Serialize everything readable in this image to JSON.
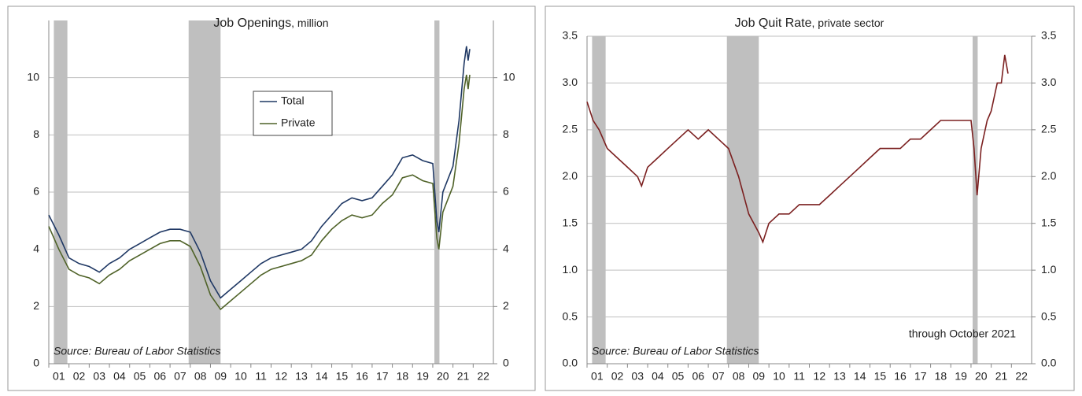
{
  "chart_data": [
    {
      "type": "line",
      "title": "Job Openings",
      "subtitle": ", million",
      "annotations": [
        "Source: Bureau of Labor Statistics"
      ],
      "legend": true,
      "recessions": [
        [
          2001.25,
          2001.92
        ],
        [
          2007.92,
          2009.5
        ],
        [
          2020.08,
          2020.33
        ]
      ],
      "xlim": [
        2001,
        2023
      ],
      "xticks": [
        {
          "value": 2001,
          "label": "01"
        },
        {
          "value": 2002,
          "label": "02"
        },
        {
          "value": 2003,
          "label": "03"
        },
        {
          "value": 2004,
          "label": "04"
        },
        {
          "value": 2005,
          "label": "05"
        },
        {
          "value": 2006,
          "label": "06"
        },
        {
          "value": 2007,
          "label": "07"
        },
        {
          "value": 2008,
          "label": "08"
        },
        {
          "value": 2009,
          "label": "09"
        },
        {
          "value": 2010,
          "label": "10"
        },
        {
          "value": 2011,
          "label": "11"
        },
        {
          "value": 2012,
          "label": "12"
        },
        {
          "value": 2013,
          "label": "13"
        },
        {
          "value": 2014,
          "label": "14"
        },
        {
          "value": 2015,
          "label": "15"
        },
        {
          "value": 2016,
          "label": "16"
        },
        {
          "value": 2017,
          "label": "17"
        },
        {
          "value": 2018,
          "label": "18"
        },
        {
          "value": 2019,
          "label": "19"
        },
        {
          "value": 2020,
          "label": "20"
        },
        {
          "value": 2021,
          "label": "21"
        },
        {
          "value": 2022,
          "label": "22"
        }
      ],
      "ylim": [
        0,
        12
      ],
      "yticks": [
        0,
        2,
        4,
        6,
        8,
        10
      ],
      "y2ticks": [
        0,
        2,
        4,
        6,
        8,
        10
      ],
      "grid": true,
      "x": [
        2001.0,
        2001.5,
        2002.0,
        2002.5,
        2003.0,
        2003.5,
        2004.0,
        2004.5,
        2005.0,
        2005.5,
        2006.0,
        2006.5,
        2007.0,
        2007.5,
        2008.0,
        2008.5,
        2009.0,
        2009.5,
        2010.0,
        2010.5,
        2011.0,
        2011.5,
        2012.0,
        2012.5,
        2013.0,
        2013.5,
        2014.0,
        2014.5,
        2015.0,
        2015.5,
        2016.0,
        2016.5,
        2017.0,
        2017.5,
        2018.0,
        2018.5,
        2019.0,
        2019.5,
        2020.0,
        2020.2,
        2020.3,
        2020.5,
        2021.0,
        2021.3,
        2021.55,
        2021.67,
        2021.75,
        2021.83
      ],
      "series": [
        {
          "name": "Total",
          "color": "#1f3864",
          "values": [
            5.2,
            4.5,
            3.7,
            3.5,
            3.4,
            3.2,
            3.5,
            3.7,
            4.0,
            4.2,
            4.4,
            4.6,
            4.7,
            4.7,
            4.6,
            3.9,
            2.9,
            2.3,
            2.6,
            2.9,
            3.2,
            3.5,
            3.7,
            3.8,
            3.9,
            4.0,
            4.3,
            4.8,
            5.2,
            5.6,
            5.8,
            5.7,
            5.8,
            6.2,
            6.6,
            7.2,
            7.3,
            7.1,
            7.0,
            5.0,
            4.6,
            6.0,
            6.9,
            8.5,
            10.5,
            11.1,
            10.6,
            11.0
          ]
        },
        {
          "name": "Private",
          "color": "#4f6228",
          "values": [
            4.8,
            4.0,
            3.3,
            3.1,
            3.0,
            2.8,
            3.1,
            3.3,
            3.6,
            3.8,
            4.0,
            4.2,
            4.3,
            4.3,
            4.1,
            3.4,
            2.4,
            1.9,
            2.2,
            2.5,
            2.8,
            3.1,
            3.3,
            3.4,
            3.5,
            3.6,
            3.8,
            4.3,
            4.7,
            5.0,
            5.2,
            5.1,
            5.2,
            5.6,
            5.9,
            6.5,
            6.6,
            6.4,
            6.3,
            4.4,
            4.0,
            5.3,
            6.2,
            7.7,
            9.6,
            10.1,
            9.6,
            10.1
          ]
        }
      ]
    },
    {
      "type": "line",
      "title": "Job Quit Rate",
      "subtitle": ", private sector",
      "annotations": [
        "Source: Bureau of Labor Statistics",
        "through October 2021"
      ],
      "legend": false,
      "recessions": [
        [
          2001.25,
          2001.92
        ],
        [
          2007.92,
          2009.5
        ],
        [
          2020.08,
          2020.33
        ]
      ],
      "xlim": [
        2001,
        2023
      ],
      "xticks": [
        {
          "value": 2001,
          "label": "01"
        },
        {
          "value": 2002,
          "label": "02"
        },
        {
          "value": 2003,
          "label": "03"
        },
        {
          "value": 2004,
          "label": "04"
        },
        {
          "value": 2005,
          "label": "05"
        },
        {
          "value": 2006,
          "label": "06"
        },
        {
          "value": 2007,
          "label": "07"
        },
        {
          "value": 2008,
          "label": "08"
        },
        {
          "value": 2009,
          "label": "09"
        },
        {
          "value": 2010,
          "label": "10"
        },
        {
          "value": 2011,
          "label": "11"
        },
        {
          "value": 2012,
          "label": "12"
        },
        {
          "value": 2013,
          "label": "13"
        },
        {
          "value": 2014,
          "label": "14"
        },
        {
          "value": 2015,
          "label": "15"
        },
        {
          "value": 2016,
          "label": "16"
        },
        {
          "value": 2017,
          "label": "17"
        },
        {
          "value": 2018,
          "label": "18"
        },
        {
          "value": 2019,
          "label": "19"
        },
        {
          "value": 2020,
          "label": "20"
        },
        {
          "value": 2021,
          "label": "21"
        },
        {
          "value": 2022,
          "label": "22"
        }
      ],
      "ylim": [
        0,
        3.5
      ],
      "yticks": [
        {
          "value": 0,
          "label": "0.0"
        },
        0.5,
        {
          "value": 1,
          "label": "1.0"
        },
        1.5,
        {
          "value": 2,
          "label": "2.0"
        },
        2.5,
        {
          "value": 3,
          "label": "3.0"
        },
        3.5
      ],
      "y2ticks": [
        {
          "value": 0,
          "label": "0.0"
        },
        0.5,
        {
          "value": 1,
          "label": "1.0"
        },
        1.5,
        {
          "value": 2,
          "label": "2.0"
        },
        2.5,
        {
          "value": 3,
          "label": "3.0"
        },
        3.5
      ],
      "grid": true,
      "x": [
        2001.0,
        2001.3,
        2001.6,
        2002.0,
        2002.5,
        2003.0,
        2003.5,
        2003.7,
        2004.0,
        2004.5,
        2005.0,
        2005.5,
        2006.0,
        2006.5,
        2007.0,
        2007.5,
        2008.0,
        2008.5,
        2009.0,
        2009.5,
        2009.7,
        2010.0,
        2010.5,
        2011.0,
        2011.5,
        2012.0,
        2012.5,
        2013.0,
        2013.5,
        2014.0,
        2014.5,
        2015.0,
        2015.5,
        2016.0,
        2016.5,
        2017.0,
        2017.5,
        2018.0,
        2018.5,
        2019.0,
        2019.5,
        2020.0,
        2020.15,
        2020.3,
        2020.5,
        2020.8,
        2021.0,
        2021.3,
        2021.5,
        2021.67,
        2021.83
      ],
      "color": "#7b2020",
      "values": [
        2.8,
        2.6,
        2.5,
        2.3,
        2.2,
        2.1,
        2.0,
        1.9,
        2.1,
        2.2,
        2.3,
        2.4,
        2.5,
        2.4,
        2.5,
        2.4,
        2.3,
        2.0,
        1.6,
        1.4,
        1.3,
        1.5,
        1.6,
        1.6,
        1.7,
        1.7,
        1.7,
        1.8,
        1.9,
        2.0,
        2.1,
        2.2,
        2.3,
        2.3,
        2.3,
        2.4,
        2.4,
        2.5,
        2.6,
        2.6,
        2.6,
        2.6,
        2.3,
        1.8,
        2.3,
        2.6,
        2.7,
        3.0,
        3.0,
        3.3,
        3.1
      ]
    }
  ]
}
